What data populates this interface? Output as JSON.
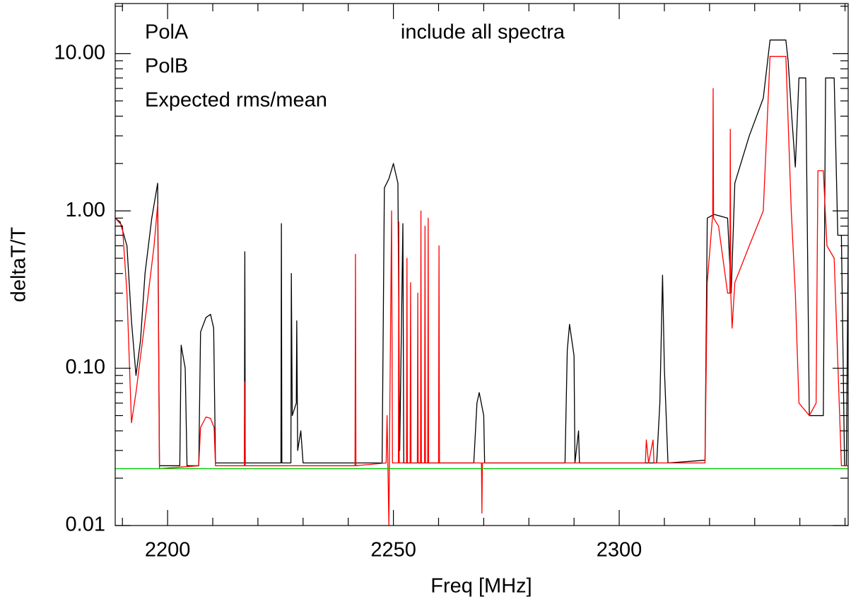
{
  "chart_data": {
    "type": "line",
    "title": "include all spectra",
    "xlabel": "Freq [MHz]",
    "ylabel": "deltaT/T",
    "log_y": true,
    "xlim": [
      2188.4,
      2350.7
    ],
    "ylim": [
      0.01,
      20.8
    ],
    "xticks": [
      2200,
      2250,
      2300
    ],
    "xminorticks": [
      2190,
      2210,
      2220,
      2230,
      2240,
      2260,
      2270,
      2280,
      2290,
      2310,
      2320,
      2330,
      2340,
      2350
    ],
    "yticks": [
      {
        "value": 0.01,
        "label": "0.01"
      },
      {
        "value": 0.1,
        "label": "0.10"
      },
      {
        "value": 1,
        "label": "1.00"
      },
      {
        "value": 10,
        "label": "10.00"
      }
    ],
    "yminorticks": [
      0.02,
      0.03,
      0.04,
      0.05,
      0.06,
      0.07,
      0.08,
      0.09,
      0.2,
      0.3,
      0.4,
      0.5,
      0.6,
      0.7,
      0.8,
      0.9,
      2,
      3,
      4,
      5,
      6,
      7,
      8,
      9,
      20
    ],
    "legend": "upper left",
    "series": [
      {
        "name": "PolA",
        "color": "#000000",
        "x": [
          2188.4,
          2189.5,
          2191,
          2192,
          2193,
          2194,
          2195,
          2196.5,
          2197.8,
          2198.2,
          2202.7,
          2203.0,
          2203.9,
          2204.3,
          2206.9,
          2207.3,
          2208.5,
          2209.5,
          2210.2,
          2210.6,
          2217.0,
          2217.1,
          2217.2,
          2225.1,
          2225.2,
          2225.3,
          2227.3,
          2227.4,
          2227.6,
          2228.5,
          2228.6,
          2228.8,
          2229.5,
          2230,
          2247.5,
          2248,
          2249,
          2250,
          2251,
          2251.4,
          2252.1,
          2252.3,
          2267.8,
          2268.5,
          2269,
          2270,
          2270.2,
          2288,
          2288.5,
          2289,
          2290,
          2290.2,
          2291,
          2291.2,
          2308.3,
          2309,
          2309.6,
          2310,
          2310.8,
          2319,
          2319.5,
          2321,
          2324,
          2324.8,
          2325.6,
          2328.8,
          2331.9,
          2333.4,
          2336.9,
          2337.4,
          2338.2,
          2339,
          2339.8,
          2341.3,
          2342.1,
          2345.2,
          2345.7,
          2347.6,
          2348.4,
          2349.2,
          2349.9,
          2350.3,
          2350.7
        ],
        "values": [
          0.9,
          0.85,
          0.6,
          0.2,
          0.09,
          0.15,
          0.4,
          0.9,
          1.5,
          0.024,
          0.024,
          0.14,
          0.1,
          0.024,
          0.024,
          0.17,
          0.21,
          0.22,
          0.18,
          0.025,
          0.025,
          0.55,
          0.025,
          0.025,
          0.83,
          0.025,
          0.025,
          0.4,
          0.05,
          0.06,
          0.2,
          0.03,
          0.04,
          0.025,
          0.025,
          1.4,
          1.6,
          2.0,
          1.5,
          0.03,
          0.83,
          0.025,
          0.025,
          0.06,
          0.07,
          0.05,
          0.025,
          0.025,
          0.13,
          0.19,
          0.12,
          0.025,
          0.04,
          0.025,
          0.025,
          0.06,
          0.39,
          0.1,
          0.025,
          0.026,
          0.9,
          0.95,
          0.9,
          0.3,
          1.5,
          3,
          5.2,
          12.2,
          12.2,
          9,
          4,
          1.9,
          7,
          7,
          0.05,
          0.05,
          7,
          7,
          0.7,
          0.7,
          0.024,
          0.024,
          0.6
        ]
      },
      {
        "name": "PolB",
        "color": "#ff0000",
        "x": [
          2188.4,
          2190,
          2191,
          2192,
          2193,
          2195,
          2197,
          2197.8,
          2198.2,
          2206.9,
          2207.3,
          2208.5,
          2209.5,
          2210.3,
          2210.6,
          2217.0,
          2217.1,
          2217.2,
          2241.5,
          2241.6,
          2241.7,
          2248.4,
          2248.6,
          2249.0,
          2249.2,
          2249.6,
          2249.8,
          2251.1,
          2251.2,
          2251.3,
          2252.9,
          2253,
          2253.1,
          2253.7,
          2253.8,
          2253.9,
          2255.3,
          2255.4,
          2255.5,
          2256,
          2256.1,
          2256.2,
          2256.9,
          2257,
          2257.1,
          2257.6,
          2257.7,
          2257.8,
          2260,
          2260.1,
          2260.2,
          2269.5,
          2269.6,
          2269.7,
          2305.8,
          2306,
          2306.5,
          2307.5,
          2307.7,
          2319,
          2319.5,
          2320.7,
          2320.8,
          2320.9,
          2322,
          2324,
          2324.5,
          2324.6,
          2324.7,
          2325,
          2325.6,
          2328.8,
          2331.9,
          2333.4,
          2336.9,
          2338.1,
          2339,
          2339.8,
          2342.1,
          2343.6,
          2344,
          2345.2,
          2346,
          2347.6,
          2349.2,
          2350.7
        ],
        "values": [
          0.9,
          0.8,
          0.3,
          0.045,
          0.07,
          0.2,
          0.6,
          1.1,
          0.023,
          0.024,
          0.042,
          0.049,
          0.048,
          0.042,
          0.024,
          0.024,
          0.082,
          0.024,
          0.024,
          0.53,
          0.024,
          0.025,
          0.05,
          0.01,
          0.05,
          1.0,
          0.025,
          0.025,
          0.85,
          0.025,
          0.025,
          0.5,
          0.025,
          0.025,
          0.35,
          0.025,
          0.025,
          0.3,
          0.025,
          0.025,
          1.0,
          0.025,
          0.025,
          0.8,
          0.025,
          0.025,
          0.9,
          0.025,
          0.025,
          0.6,
          0.025,
          0.025,
          0.012,
          0.025,
          0.025,
          0.035,
          0.025,
          0.035,
          0.025,
          0.025,
          0.35,
          0.95,
          6.0,
          0.9,
          0.8,
          0.3,
          0.3,
          3.3,
          0.3,
          0.18,
          0.35,
          0.6,
          1.0,
          9.6,
          9.6,
          1.0,
          0.3,
          0.06,
          0.05,
          0.06,
          1.8,
          1.8,
          0.6,
          0.5,
          0.024,
          0.024
        ]
      },
      {
        "name": "Expected rms/mean",
        "color": "#00cc00",
        "x": [
          2188.4,
          2350.7
        ],
        "values": [
          0.023,
          0.023
        ]
      }
    ]
  }
}
